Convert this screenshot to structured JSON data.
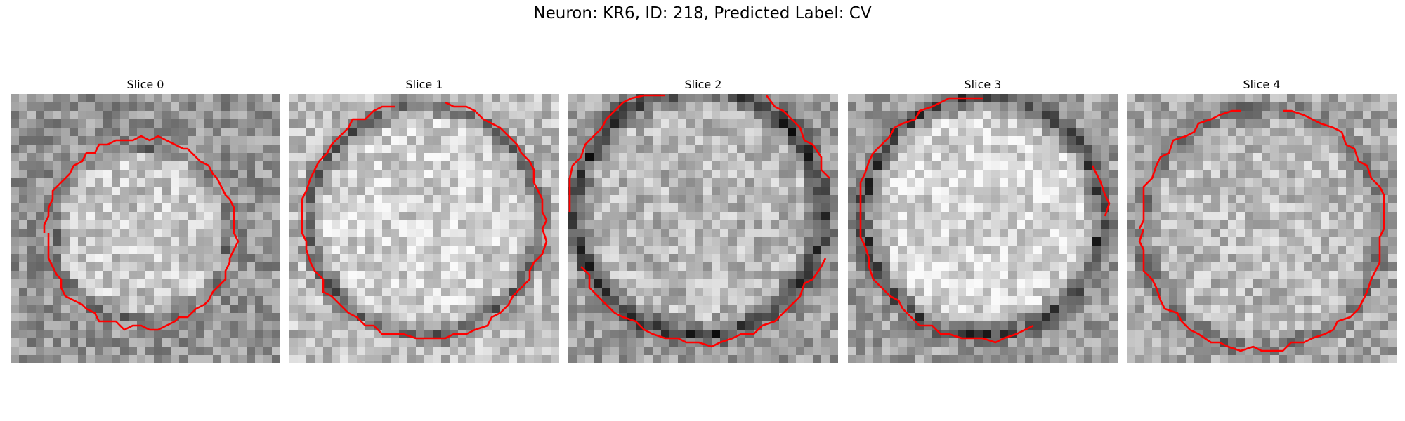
{
  "figure": {
    "title": "Neuron: KR6, ID: 218, Predicted Label: CV"
  },
  "panels": [
    {
      "title": "Slice 0",
      "dark_rim": "faint",
      "contour": "closed, centered octagon"
    },
    {
      "title": "Slice 1",
      "dark_rim": "strong",
      "contour": "top segments separated, large"
    },
    {
      "title": "Slice 2",
      "dark_rim": "strong",
      "contour": "broken into two parts, very large"
    },
    {
      "title": "Slice 3",
      "dark_rim": "strong",
      "contour": "open at right side"
    },
    {
      "title": "Slice 4",
      "dark_rim": "medium",
      "contour": "nearly closed, gap at top"
    }
  ],
  "colors": {
    "contour": "#ff0000",
    "background": "#ffffff"
  }
}
